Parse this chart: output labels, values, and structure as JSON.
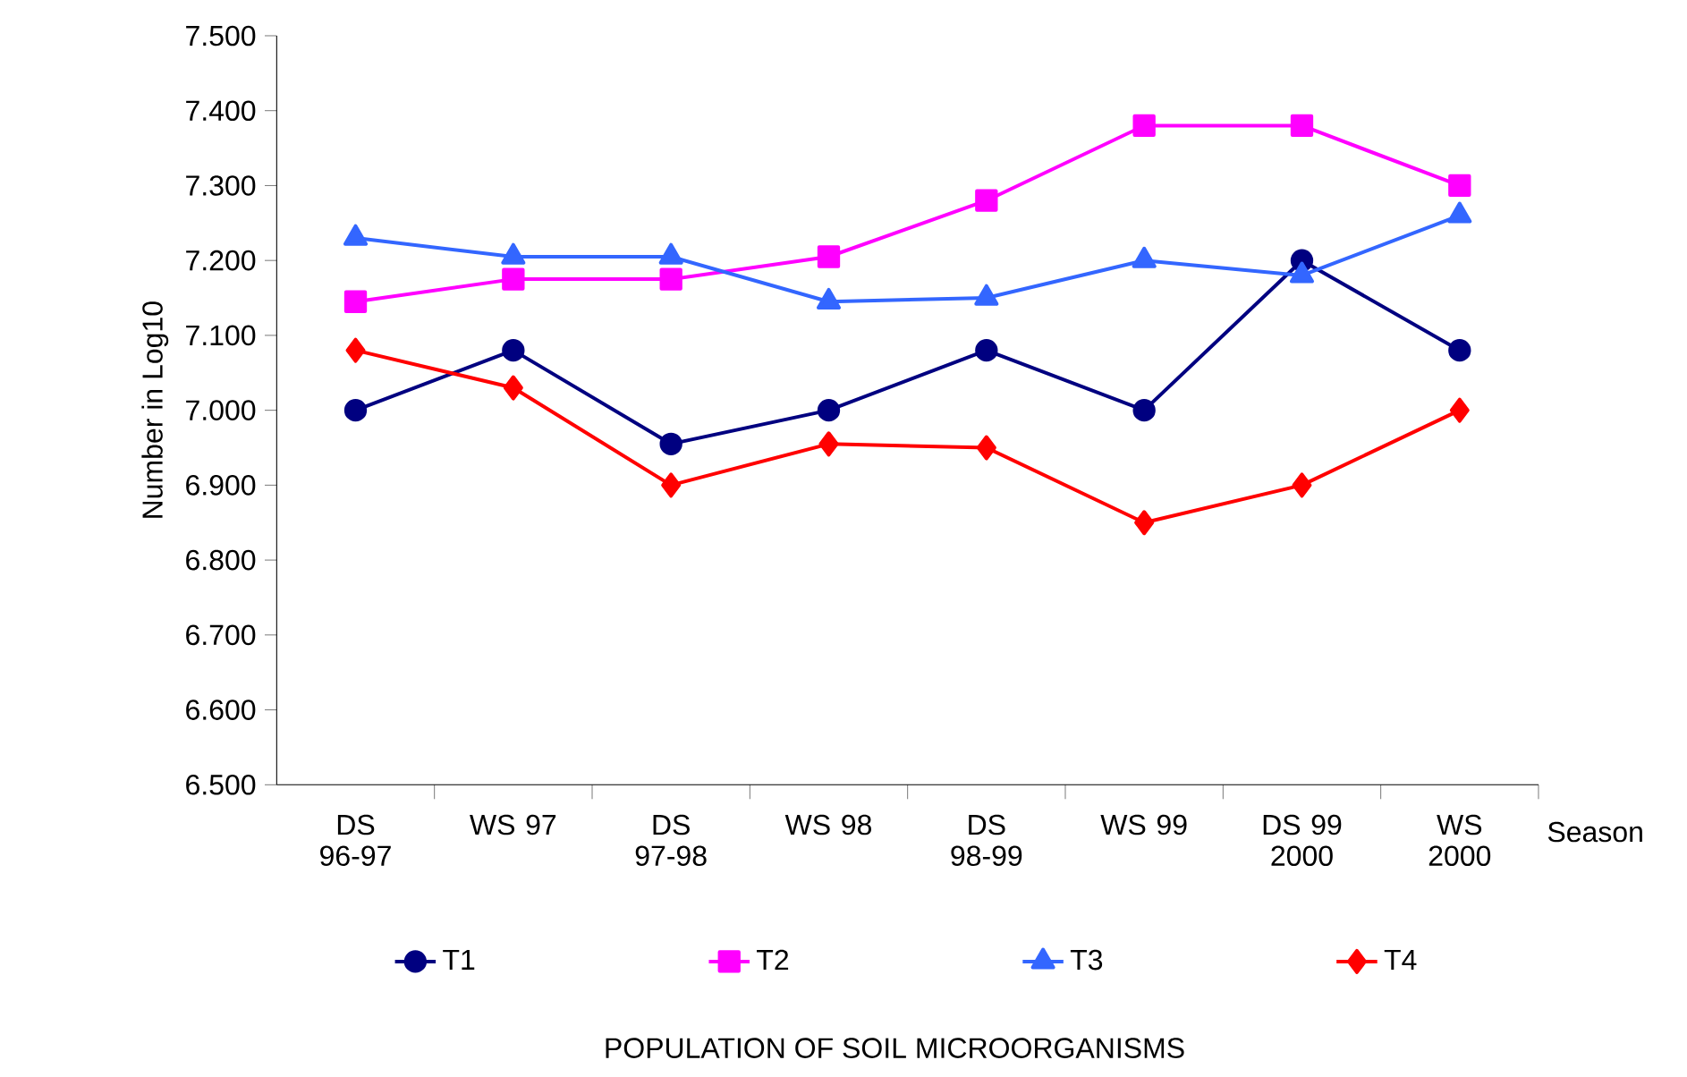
{
  "chart_data": {
    "type": "line",
    "title": "POPULATION OF SOIL MICROORGANISMS",
    "xlabel": "Season",
    "ylabel": "Number in Log10",
    "categories": [
      "DS 96-97",
      "WS 97",
      "DS 97-98",
      "WS 98",
      "DS 98-99",
      "WS 99",
      "DS 99 2000",
      "WS 2000"
    ],
    "series": [
      {
        "name": "T1",
        "color": "#000080",
        "marker": "circle",
        "values": [
          7.0,
          7.08,
          6.955,
          7.0,
          7.08,
          7.0,
          7.2,
          7.08
        ]
      },
      {
        "name": "T2",
        "color": "#ff00ff",
        "marker": "square",
        "values": [
          7.145,
          7.175,
          7.175,
          7.205,
          7.28,
          7.38,
          7.38,
          7.3
        ]
      },
      {
        "name": "T3",
        "color": "#3366ff",
        "marker": "triangle",
        "values": [
          7.23,
          7.205,
          7.205,
          7.145,
          7.15,
          7.2,
          7.18,
          7.26
        ]
      },
      {
        "name": "T4",
        "color": "#ff0000",
        "marker": "diamond",
        "values": [
          7.08,
          7.03,
          6.9,
          6.955,
          6.95,
          6.85,
          6.9,
          7.0
        ]
      }
    ],
    "ylim": [
      6.5,
      7.5
    ],
    "yticks": [
      {
        "value": 6.5,
        "label": "6.500"
      },
      {
        "value": 6.6,
        "label": "6.600"
      },
      {
        "value": 6.7,
        "label": "6.700"
      },
      {
        "value": 6.8,
        "label": "6.800"
      },
      {
        "value": 6.9,
        "label": "6.900"
      },
      {
        "value": 7.0,
        "label": "7.000"
      },
      {
        "value": 7.1,
        "label": "7.100"
      },
      {
        "value": 7.2,
        "label": "7.200"
      },
      {
        "value": 7.3,
        "label": "7.300"
      },
      {
        "value": 7.4,
        "label": "7.400"
      },
      {
        "value": 7.5,
        "label": "7.500"
      }
    ],
    "grid": false,
    "legend": "bottom",
    "line_style": "solid"
  }
}
